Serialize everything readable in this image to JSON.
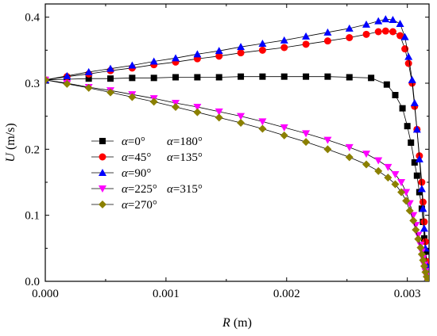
{
  "chart_data": {
    "type": "scatter",
    "xlabel_var": "R",
    "xlabel_unit": " (m)",
    "ylabel_var": "U",
    "ylabel_unit": " (m/s)",
    "xlim": [
      0,
      0.00318
    ],
    "ylim": [
      0,
      0.42
    ],
    "xticks": [
      0.0,
      0.001,
      0.002,
      0.003
    ],
    "xtick_labels": [
      "0.000",
      "0.001",
      "0.002",
      "0.003"
    ],
    "yticks": [
      0.0,
      0.1,
      0.2,
      0.3,
      0.4
    ],
    "ytick_labels": [
      "0.0",
      "0.1",
      "0.2",
      "0.3",
      "0.4"
    ],
    "grid": false,
    "legend_position": "left-middle",
    "legend_symbol": "α",
    "series": [
      {
        "legend_parts": [
          "=0°",
          "=180°"
        ],
        "marker": "square",
        "color": "#000000",
        "x": [
          0.0,
          0.00018,
          0.00036,
          0.00054,
          0.00072,
          0.0009,
          0.00108,
          0.00126,
          0.00144,
          0.00162,
          0.0018,
          0.00198,
          0.00216,
          0.00234,
          0.00252,
          0.0027,
          0.00283,
          0.0029,
          0.00296,
          0.003,
          0.00303,
          0.00306,
          0.00308,
          0.0031,
          0.00312,
          0.00313,
          0.00314,
          0.00315,
          0.00316,
          0.00317
        ],
        "y": [
          0.305,
          0.306,
          0.307,
          0.307,
          0.308,
          0.308,
          0.309,
          0.309,
          0.309,
          0.31,
          0.31,
          0.31,
          0.31,
          0.31,
          0.309,
          0.308,
          0.298,
          0.282,
          0.262,
          0.235,
          0.21,
          0.18,
          0.16,
          0.135,
          0.11,
          0.09,
          0.065,
          0.045,
          0.025,
          0.005
        ]
      },
      {
        "legend_parts": [
          "=45°",
          "=135°"
        ],
        "marker": "circle",
        "color": "#ff0000",
        "x": [
          0.0,
          0.00018,
          0.00036,
          0.00054,
          0.00072,
          0.0009,
          0.00108,
          0.00126,
          0.00144,
          0.00162,
          0.0018,
          0.00198,
          0.00216,
          0.00234,
          0.00252,
          0.00266,
          0.00276,
          0.00282,
          0.00288,
          0.00294,
          0.00298,
          0.00301,
          0.00304,
          0.00306,
          0.00308,
          0.0031,
          0.00312,
          0.00313,
          0.00314,
          0.00315,
          0.00316,
          0.00317
        ],
        "y": [
          0.305,
          0.31,
          0.314,
          0.319,
          0.323,
          0.328,
          0.332,
          0.337,
          0.341,
          0.346,
          0.35,
          0.354,
          0.359,
          0.364,
          0.369,
          0.374,
          0.378,
          0.379,
          0.378,
          0.372,
          0.352,
          0.33,
          0.3,
          0.265,
          0.23,
          0.19,
          0.15,
          0.12,
          0.09,
          0.06,
          0.03,
          0.005
        ]
      },
      {
        "legend_parts": [
          "=90°"
        ],
        "marker": "triangle-up",
        "color": "#0000ff",
        "x": [
          0.0,
          0.00018,
          0.00036,
          0.00054,
          0.00072,
          0.0009,
          0.00108,
          0.00126,
          0.00144,
          0.00162,
          0.0018,
          0.00198,
          0.00216,
          0.00234,
          0.00252,
          0.00266,
          0.00276,
          0.00282,
          0.00288,
          0.00294,
          0.00298,
          0.00301,
          0.00304,
          0.00306,
          0.00308,
          0.0031,
          0.00312,
          0.00313,
          0.00314,
          0.00315,
          0.00316,
          0.00317
        ],
        "y": [
          0.305,
          0.311,
          0.317,
          0.322,
          0.327,
          0.333,
          0.338,
          0.344,
          0.349,
          0.355,
          0.36,
          0.365,
          0.371,
          0.377,
          0.383,
          0.389,
          0.394,
          0.397,
          0.396,
          0.39,
          0.37,
          0.34,
          0.305,
          0.27,
          0.23,
          0.185,
          0.14,
          0.11,
          0.08,
          0.05,
          0.025,
          0.005
        ]
      },
      {
        "legend_parts": [
          "=225°",
          "=315°"
        ],
        "marker": "triangle-down",
        "color": "#ff00ff",
        "x": [
          0.0,
          0.00018,
          0.00036,
          0.00054,
          0.00072,
          0.0009,
          0.00108,
          0.00126,
          0.00144,
          0.00162,
          0.0018,
          0.00198,
          0.00216,
          0.00234,
          0.00252,
          0.00266,
          0.00276,
          0.00284,
          0.0029,
          0.00295,
          0.00299,
          0.00302,
          0.00305,
          0.00307,
          0.00309,
          0.00311,
          0.00312,
          0.00313,
          0.00314,
          0.00315,
          0.00316,
          0.00317
        ],
        "y": [
          0.305,
          0.3,
          0.294,
          0.289,
          0.283,
          0.277,
          0.27,
          0.264,
          0.257,
          0.25,
          0.242,
          0.233,
          0.224,
          0.214,
          0.203,
          0.193,
          0.183,
          0.173,
          0.162,
          0.15,
          0.135,
          0.118,
          0.1,
          0.085,
          0.07,
          0.055,
          0.045,
          0.035,
          0.025,
          0.015,
          0.008,
          0.002
        ]
      },
      {
        "legend_parts": [
          "=270°"
        ],
        "marker": "diamond",
        "color": "#8b8000",
        "x": [
          0.0,
          0.00018,
          0.00036,
          0.00054,
          0.00072,
          0.0009,
          0.00108,
          0.00126,
          0.00144,
          0.00162,
          0.0018,
          0.00198,
          0.00216,
          0.00234,
          0.00252,
          0.00266,
          0.00276,
          0.00284,
          0.0029,
          0.00295,
          0.00299,
          0.00302,
          0.00305,
          0.00307,
          0.00309,
          0.00311,
          0.00312,
          0.00313,
          0.00314,
          0.00315,
          0.00316,
          0.00317
        ],
        "y": [
          0.305,
          0.299,
          0.293,
          0.286,
          0.279,
          0.272,
          0.264,
          0.256,
          0.248,
          0.24,
          0.231,
          0.221,
          0.211,
          0.2,
          0.188,
          0.177,
          0.167,
          0.157,
          0.147,
          0.135,
          0.122,
          0.107,
          0.092,
          0.078,
          0.064,
          0.051,
          0.041,
          0.032,
          0.023,
          0.014,
          0.007,
          0.002
        ]
      }
    ]
  }
}
